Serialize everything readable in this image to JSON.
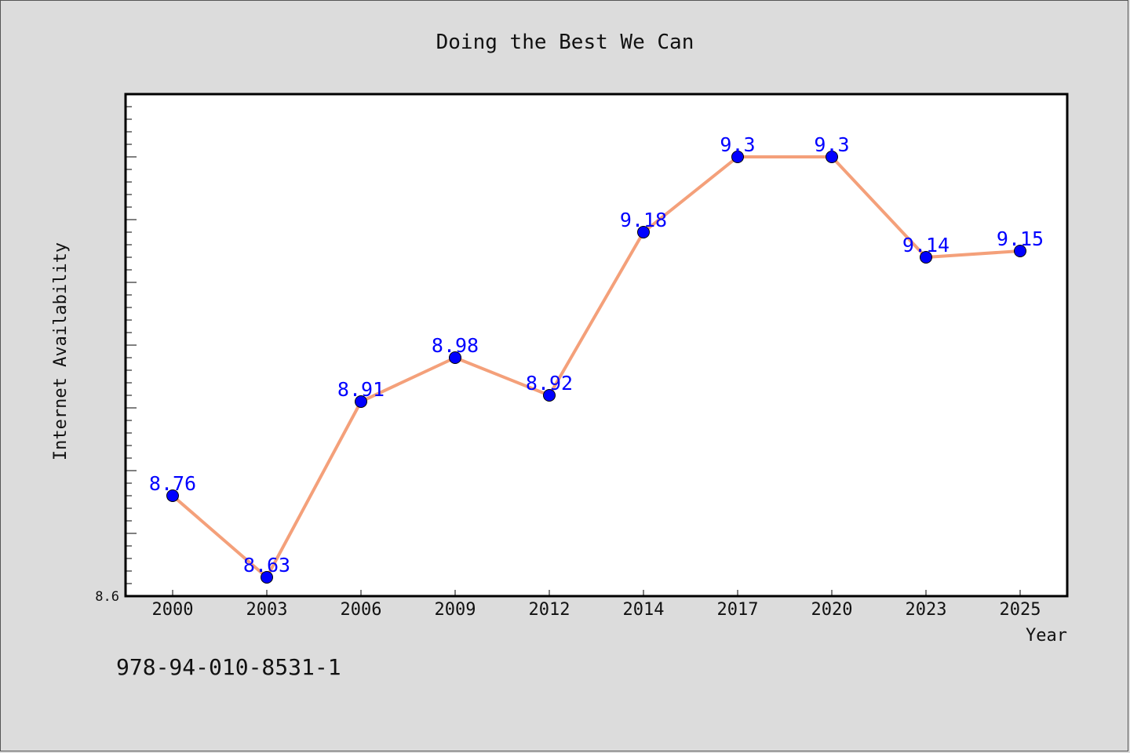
{
  "chart_data": {
    "type": "line",
    "title": "Doing the Best We Can",
    "xlabel": "Year",
    "ylabel": "Internet Availability",
    "categories": [
      "2000",
      "2003",
      "2006",
      "2009",
      "2012",
      "2014",
      "2017",
      "2020",
      "2023",
      "2025"
    ],
    "series": [
      {
        "values": [
          8.76,
          8.63,
          8.91,
          8.98,
          8.92,
          9.18,
          9.3,
          9.3,
          9.14,
          9.15
        ]
      }
    ],
    "data_labels": [
      "8.76",
      "8.63",
      "8.91",
      "8.98",
      "8.92",
      "9.18",
      "9.3",
      "9.3",
      "9.14",
      "9.15"
    ],
    "yticks": [
      {
        "value": 8.6,
        "label": "8.6"
      }
    ],
    "ylim": [
      8.6,
      9.4
    ],
    "grid": false,
    "legend": "none",
    "line_color": "#f4a07a",
    "marker_color": "#0000ff",
    "label_color": "#0000ff"
  },
  "footer": {
    "isbn": "978-94-010-8531-1"
  }
}
